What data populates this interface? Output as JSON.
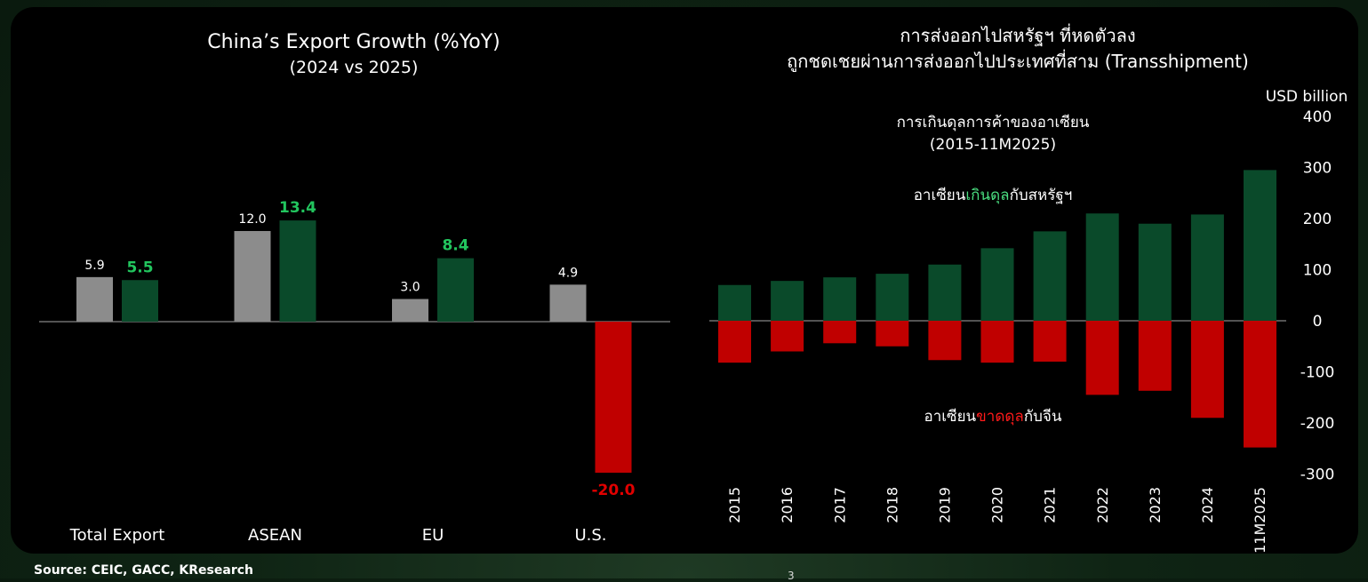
{
  "source": "Source: CEIC, GACC, KResearch",
  "page_number": "3",
  "chart_data": [
    {
      "type": "bar",
      "title": "China’s Export Growth (%YoY)",
      "subtitle": "(2024 vs 2025)",
      "categories": [
        "Total Export",
        "ASEAN",
        "EU",
        "U.S."
      ],
      "series": [
        {
          "name": "2024",
          "values": [
            5.9,
            12.0,
            3.0,
            4.9
          ],
          "labels": [
            "5.9",
            "12.0",
            "3.0",
            "4.9"
          ],
          "color": "#8c8c8c"
        },
        {
          "name": "2025",
          "values": [
            5.5,
            13.4,
            8.4,
            -20.0
          ],
          "labels": [
            "5.5",
            "13.4",
            "8.4",
            "-20.0"
          ],
          "color": "#0a4a2a"
        }
      ],
      "negative_color": "#c00000",
      "positive_label_color": "#22c55e",
      "negative_label_color": "#e00000",
      "ylim": [
        -20,
        14
      ],
      "grid": false
    },
    {
      "type": "bar",
      "title": "การส่งออกไปสหรัฐฯ ที่หดตัวลง",
      "subtitle": "ถูกชดเชยผ่านการส่งออกไปประเทศที่สาม (Transshipment)",
      "inner_title": "การเกินดุลการค้าของอาเซียน",
      "inner_subtitle": "(2015-11M2025)",
      "ylabel": "USD billion",
      "ylim": [
        -300,
        400
      ],
      "yticks": [
        400,
        300,
        200,
        100,
        0,
        -100,
        -200,
        -300
      ],
      "categories": [
        "2015",
        "2016",
        "2017",
        "2018",
        "2019",
        "2020",
        "2021",
        "2022",
        "2023",
        "2024",
        "11M2025"
      ],
      "series": [
        {
          "name": "อาเซียนเกินดุลกับสหรัฐฯ",
          "values": [
            70,
            78,
            85,
            92,
            110,
            142,
            175,
            210,
            190,
            208,
            295
          ],
          "color": "#0a4a2a"
        },
        {
          "name": "อาเซียนขาดดุลกับจีน",
          "values": [
            -82,
            -60,
            -44,
            -50,
            -77,
            -82,
            -80,
            -145,
            -137,
            -190,
            -248
          ],
          "color": "#c00000"
        }
      ],
      "annotations": [
        {
          "parts": [
            "อาเซียน",
            "เกินดุล",
            "กับสหรัฐฯ"
          ],
          "highlight_color": "#4ade80"
        },
        {
          "parts": [
            "อาเซียน",
            "ขาดดุล",
            "กับจีน"
          ],
          "highlight_color": "#ff1a1a"
        }
      ],
      "grid": false
    }
  ]
}
